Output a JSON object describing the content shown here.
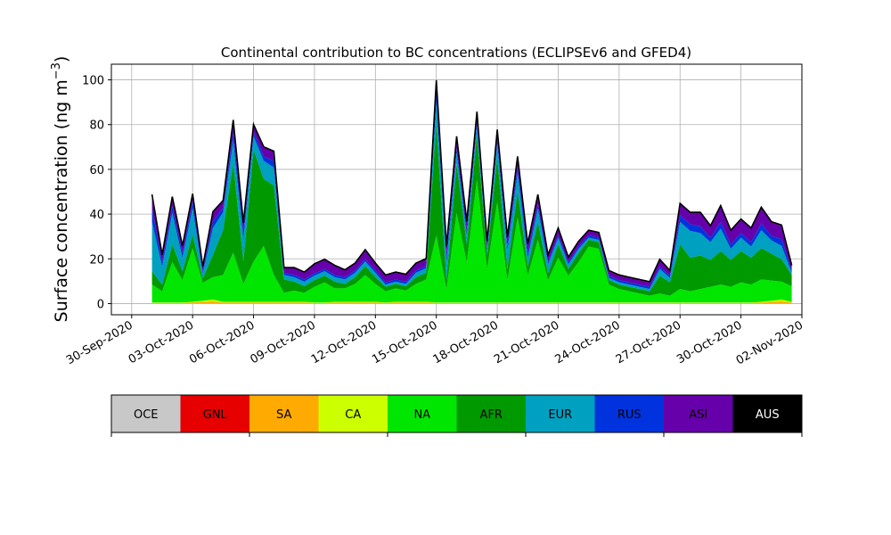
{
  "chart_data": {
    "type": "area",
    "stacked": true,
    "title": "Continental contribution to BC concentrations (ECLIPSEv6 and GFED4)",
    "xlabel": "",
    "ylabel": "Surface concentration (ng m",
    "ylabel_sup": "−3",
    "ylabel_close": ")",
    "x_type": "date",
    "xlim": [
      "2020-09-29",
      "2020-11-02"
    ],
    "ylim": [
      -5,
      107
    ],
    "grid": true,
    "x_ticks": [
      "2020-09-30",
      "2020-10-03",
      "2020-10-06",
      "2020-10-09",
      "2020-10-12",
      "2020-10-15",
      "2020-10-18",
      "2020-10-21",
      "2020-10-24",
      "2020-10-27",
      "2020-10-30",
      "2020-11-02"
    ],
    "x_tick_labels": [
      "30-Sep-2020",
      "03-Oct-2020",
      "06-Oct-2020",
      "09-Oct-2020",
      "12-Oct-2020",
      "15-Oct-2020",
      "18-Oct-2020",
      "21-Oct-2020",
      "24-Oct-2020",
      "27-Oct-2020",
      "30-Oct-2020",
      "02-Nov-2020"
    ],
    "y_ticks": [
      0,
      20,
      40,
      60,
      80,
      100
    ],
    "x": [
      "2020-10-01",
      "2020-10-01 12:00",
      "2020-10-02",
      "2020-10-02 12:00",
      "2020-10-03",
      "2020-10-03 12:00",
      "2020-10-04",
      "2020-10-04 12:00",
      "2020-10-05",
      "2020-10-05 12:00",
      "2020-10-06",
      "2020-10-06 12:00",
      "2020-10-07",
      "2020-10-07 12:00",
      "2020-10-08",
      "2020-10-08 12:00",
      "2020-10-09",
      "2020-10-09 12:00",
      "2020-10-10",
      "2020-10-10 12:00",
      "2020-10-11",
      "2020-10-11 12:00",
      "2020-10-12",
      "2020-10-12 12:00",
      "2020-10-13",
      "2020-10-13 12:00",
      "2020-10-14",
      "2020-10-14 12:00",
      "2020-10-15",
      "2020-10-15 12:00",
      "2020-10-16",
      "2020-10-16 12:00",
      "2020-10-17",
      "2020-10-17 12:00",
      "2020-10-18",
      "2020-10-18 12:00",
      "2020-10-19",
      "2020-10-19 12:00",
      "2020-10-20",
      "2020-10-20 12:00",
      "2020-10-21",
      "2020-10-21 12:00",
      "2020-10-22",
      "2020-10-22 12:00",
      "2020-10-23",
      "2020-10-23 12:00",
      "2020-10-24",
      "2020-10-24 12:00",
      "2020-10-25",
      "2020-10-25 12:00",
      "2020-10-26",
      "2020-10-26 12:00",
      "2020-10-27",
      "2020-10-27 12:00",
      "2020-10-28",
      "2020-10-28 12:00",
      "2020-10-29",
      "2020-10-29 12:00",
      "2020-10-30",
      "2020-10-30 12:00",
      "2020-10-31",
      "2020-10-31 12:00",
      "2020-11-01",
      "2020-11-01 12:00"
    ],
    "series": [
      {
        "name": "OCE",
        "color": "#c8c8c8",
        "values": [
          0,
          0,
          0,
          0,
          0,
          0,
          0,
          0,
          0,
          0,
          0,
          0,
          0,
          0,
          0,
          0,
          0,
          0,
          0,
          0,
          0,
          0,
          0,
          0,
          0,
          0,
          0,
          0,
          0,
          0,
          0,
          0,
          0,
          0,
          0,
          0,
          0,
          0,
          0,
          0,
          0,
          0,
          0,
          0,
          0,
          0,
          0,
          0,
          0,
          0,
          0,
          0,
          0,
          0,
          0,
          0,
          0,
          0,
          0,
          0,
          0,
          0,
          0,
          0
        ]
      },
      {
        "name": "GNL",
        "color": "#e60000",
        "values": [
          0,
          0,
          0,
          0,
          0,
          0,
          0,
          0,
          0,
          0,
          0,
          0,
          0,
          0,
          0,
          0,
          0,
          0,
          0,
          0,
          0,
          0,
          0,
          0,
          0,
          0,
          0,
          0,
          0,
          0,
          0,
          0,
          0,
          0,
          0,
          0,
          0,
          0,
          0,
          0,
          0,
          0,
          0,
          0,
          0,
          0,
          0,
          0,
          0,
          0,
          0,
          0,
          0,
          0,
          0,
          0,
          0,
          0,
          0,
          0,
          0,
          0,
          0,
          0
        ]
      },
      {
        "name": "SA",
        "color": "#ffaa00",
        "values": [
          0.3,
          0.3,
          0.3,
          0.3,
          0.5,
          0.8,
          1,
          0.5,
          0.5,
          0.5,
          0.5,
          0.5,
          0.5,
          0.5,
          0.5,
          0.5,
          0.3,
          0.3,
          0.5,
          0.5,
          0.5,
          0.5,
          0.5,
          0.3,
          0.5,
          0.5,
          0.5,
          0.5,
          0.3,
          0.3,
          0.3,
          0.3,
          0.3,
          0.3,
          0.3,
          0.3,
          0.3,
          0.3,
          0.3,
          0.3,
          0.3,
          0.3,
          0.3,
          0.3,
          0.3,
          0.3,
          0.3,
          0.3,
          0.3,
          0.3,
          0.3,
          0.3,
          0.3,
          0.3,
          0.3,
          0.3,
          0.3,
          0.3,
          0.3,
          0.3,
          0.5,
          0.8,
          1,
          0.5
        ]
      },
      {
        "name": "CA",
        "color": "#ccff00",
        "values": [
          0.2,
          0.2,
          0.2,
          0.2,
          0.3,
          0.5,
          0.8,
          0.3,
          0.3,
          0.3,
          0.3,
          0.3,
          0.3,
          0.3,
          0.3,
          0.3,
          0.2,
          0.2,
          0.3,
          0.3,
          0.3,
          0.3,
          0.3,
          0.2,
          0.3,
          0.3,
          0.3,
          0.3,
          0.2,
          0.2,
          0.2,
          0.2,
          0.2,
          0.2,
          0.2,
          0.2,
          0.2,
          0.2,
          0.2,
          0.2,
          0.2,
          0.2,
          0.2,
          0.2,
          0.2,
          0.2,
          0.2,
          0.2,
          0.2,
          0.2,
          0.2,
          0.2,
          0.2,
          0.2,
          0.2,
          0.2,
          0.2,
          0.2,
          0.2,
          0.2,
          0.3,
          0.5,
          0.8,
          0.3
        ]
      },
      {
        "name": "NA",
        "color": "#00e600",
        "values": [
          8,
          5,
          18,
          10,
          24,
          8,
          10,
          12,
          22,
          8,
          18,
          25,
          12,
          4,
          5,
          4,
          7,
          9,
          6,
          6,
          8,
          12,
          8,
          5,
          6,
          5,
          8,
          10,
          30,
          6,
          40,
          18,
          55,
          15,
          45,
          10,
          38,
          12,
          28,
          10,
          20,
          12,
          18,
          25,
          24,
          8,
          6,
          5,
          4,
          3,
          4,
          3,
          6,
          5,
          6,
          7,
          8,
          7,
          9,
          8,
          10,
          9,
          8,
          7
        ]
      },
      {
        "name": "AFR",
        "color": "#009900",
        "values": [
          6,
          3,
          8,
          4,
          6,
          2,
          10,
          20,
          40,
          10,
          50,
          30,
          40,
          6,
          4,
          3,
          3,
          3,
          3,
          2,
          3,
          4,
          3,
          2,
          2,
          2,
          3,
          3,
          50,
          4,
          22,
          8,
          20,
          6,
          20,
          5,
          12,
          4,
          8,
          3,
          6,
          3,
          4,
          3,
          3,
          2,
          2,
          2,
          2,
          2,
          8,
          6,
          20,
          15,
          15,
          12,
          15,
          12,
          14,
          12,
          14,
          12,
          10,
          5
        ]
      },
      {
        "name": "EUR",
        "color": "#00a0c0",
        "values": [
          22,
          8,
          14,
          6,
          12,
          2,
          12,
          8,
          10,
          10,
          6,
          8,
          8,
          2,
          2,
          2,
          2,
          2,
          2,
          2,
          2,
          2,
          2,
          1,
          1,
          1,
          2,
          2,
          10,
          8,
          5,
          4,
          4,
          2,
          6,
          8,
          8,
          4,
          6,
          4,
          3,
          2,
          2,
          1,
          1,
          1,
          1,
          1,
          1,
          1,
          3,
          2,
          10,
          12,
          10,
          8,
          10,
          5,
          6,
          5,
          8,
          6,
          6,
          1
        ]
      },
      {
        "name": "RUS",
        "color": "#0033dd",
        "values": [
          6,
          2,
          3,
          2,
          3,
          1,
          3,
          2,
          4,
          3,
          2,
          2,
          3,
          1,
          1,
          1,
          1,
          1,
          1,
          1,
          1,
          1,
          1,
          1,
          1,
          1,
          1,
          1,
          5,
          3,
          2,
          2,
          2,
          1,
          2,
          2,
          3,
          2,
          2,
          1,
          1,
          1,
          1,
          1,
          1,
          1,
          1,
          1,
          1,
          1,
          1,
          1,
          3,
          3,
          3,
          2,
          3,
          2,
          2,
          2,
          3,
          2,
          3,
          1
        ]
      },
      {
        "name": "ASI",
        "color": "#6600aa",
        "values": [
          6,
          3,
          4,
          3,
          3,
          2,
          4,
          3,
          5,
          4,
          3,
          4,
          4,
          2,
          3,
          3,
          4,
          4,
          4,
          3,
          3,
          4,
          3,
          3,
          3,
          3,
          3,
          3,
          4,
          4,
          5,
          4,
          4,
          3,
          4,
          4,
          4,
          4,
          4,
          3,
          3,
          2,
          2,
          2,
          2,
          2,
          2,
          2,
          2,
          2,
          3,
          2,
          5,
          5,
          6,
          5,
          7,
          6,
          6,
          6,
          7,
          6,
          6,
          2
        ]
      },
      {
        "name": "AUS",
        "color": "#000000",
        "values": [
          0.3,
          0.3,
          0.3,
          0.3,
          0.3,
          0.3,
          0.3,
          0.3,
          0.3,
          0.3,
          0.3,
          0.3,
          0.3,
          0.3,
          0.3,
          0.3,
          0.3,
          0.3,
          0.3,
          0.3,
          0.3,
          0.3,
          0.3,
          0.3,
          0.3,
          0.3,
          0.3,
          0.3,
          0.3,
          0.3,
          0.3,
          0.3,
          0.3,
          0.3,
          0.3,
          0.3,
          0.3,
          0.3,
          0.3,
          0.3,
          0.3,
          0.3,
          0.3,
          0.3,
          0.3,
          0.3,
          0.3,
          0.3,
          0.3,
          0.3,
          0.3,
          0.3,
          0.3,
          0.3,
          0.3,
          0.3,
          0.3,
          0.3,
          0.3,
          0.3,
          0.3,
          0.3,
          0.3,
          0.3
        ]
      }
    ],
    "legend": {
      "placement": "bottom colorbar",
      "entries": [
        "OCE",
        "GNL",
        "SA",
        "CA",
        "NA",
        "AFR",
        "EUR",
        "RUS",
        "ASI",
        "AUS"
      ],
      "colors": [
        "#c8c8c8",
        "#e60000",
        "#ffaa00",
        "#ccff00",
        "#00e600",
        "#009900",
        "#00a0c0",
        "#0033dd",
        "#6600aa",
        "#000000"
      ]
    }
  }
}
